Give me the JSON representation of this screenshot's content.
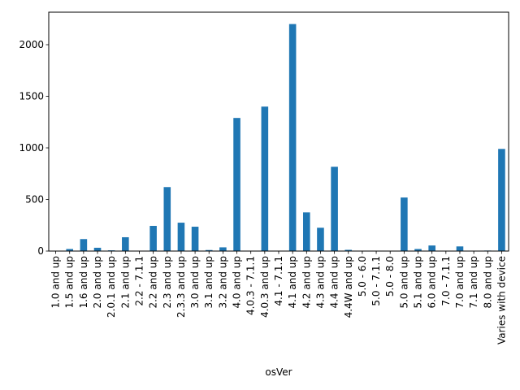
{
  "chart_data": {
    "type": "bar",
    "xlabel": "osVer",
    "ylabel": "",
    "ylim": [
      0,
      2315
    ],
    "yticks": [
      0,
      500,
      1000,
      1500,
      2000
    ],
    "bar_color": "#1f77b4",
    "grid": false,
    "categories": [
      "1.0 and up",
      "1.5 and up",
      "1.6 and up",
      "2.0 and up",
      "2.0.1 and up",
      "2.1 and up",
      "2.2 - 7.1.1",
      "2.2 and up",
      "2.3 and up",
      "2.3.3 and up",
      "3.0 and up",
      "3.1 and up",
      "3.2 and up",
      "4.0 and up",
      "4.0.3 - 7.1.1",
      "4.0.3 and up",
      "4.1 - 7.1.1",
      "4.1 and up",
      "4.2 and up",
      "4.3 and up",
      "4.4 and up",
      "4.4W and up",
      "5.0 - 6.0",
      "5.0 - 7.1.1",
      "5.0 - 8.0",
      "5.0 and up",
      "5.1 and up",
      "6.0 and up",
      "7.0 - 7.1.1",
      "7.0 and up",
      "7.1 and up",
      "8.0 and up",
      "Varies with device"
    ],
    "values": [
      2,
      20,
      116,
      32,
      7,
      134,
      1,
      244,
      620,
      275,
      236,
      10,
      36,
      1290,
      1,
      1400,
      1,
      2200,
      375,
      226,
      817,
      12,
      1,
      1,
      1,
      519,
      20,
      54,
      1,
      45,
      3,
      5,
      990
    ]
  }
}
